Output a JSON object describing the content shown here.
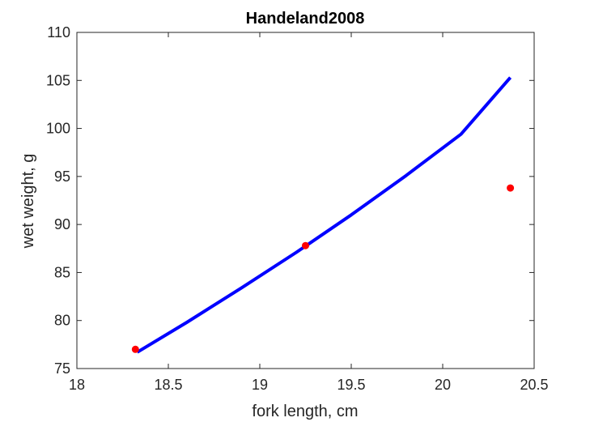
{
  "chart_data": {
    "type": "line",
    "title": "Handeland2008",
    "xlabel": "fork length, cm",
    "ylabel": "wet weight, g",
    "xlim": [
      18,
      20.5
    ],
    "ylim": [
      75,
      110
    ],
    "xticks": [
      18,
      18.5,
      19,
      19.5,
      20,
      20.5
    ],
    "xtick_labels": [
      "18",
      "18.5",
      "19",
      "19.5",
      "20",
      "20.5"
    ],
    "yticks": [
      75,
      80,
      85,
      90,
      95,
      100,
      105,
      110
    ],
    "ytick_labels": [
      "75",
      "80",
      "85",
      "90",
      "95",
      "100",
      "105",
      "110"
    ],
    "grid": false,
    "series": [
      {
        "kind": "line",
        "color": "#0000ff",
        "x": [
          18.33,
          18.6,
          18.9,
          19.2,
          19.5,
          19.8,
          20.1,
          20.37
        ],
        "y": [
          76.7,
          79.8,
          83.4,
          87.1,
          91.0,
          95.1,
          99.4,
          105.3
        ]
      },
      {
        "kind": "scatter",
        "color": "#ff0000",
        "x": [
          18.32,
          19.25,
          20.37
        ],
        "y": [
          77.0,
          87.8,
          93.8
        ]
      }
    ]
  }
}
